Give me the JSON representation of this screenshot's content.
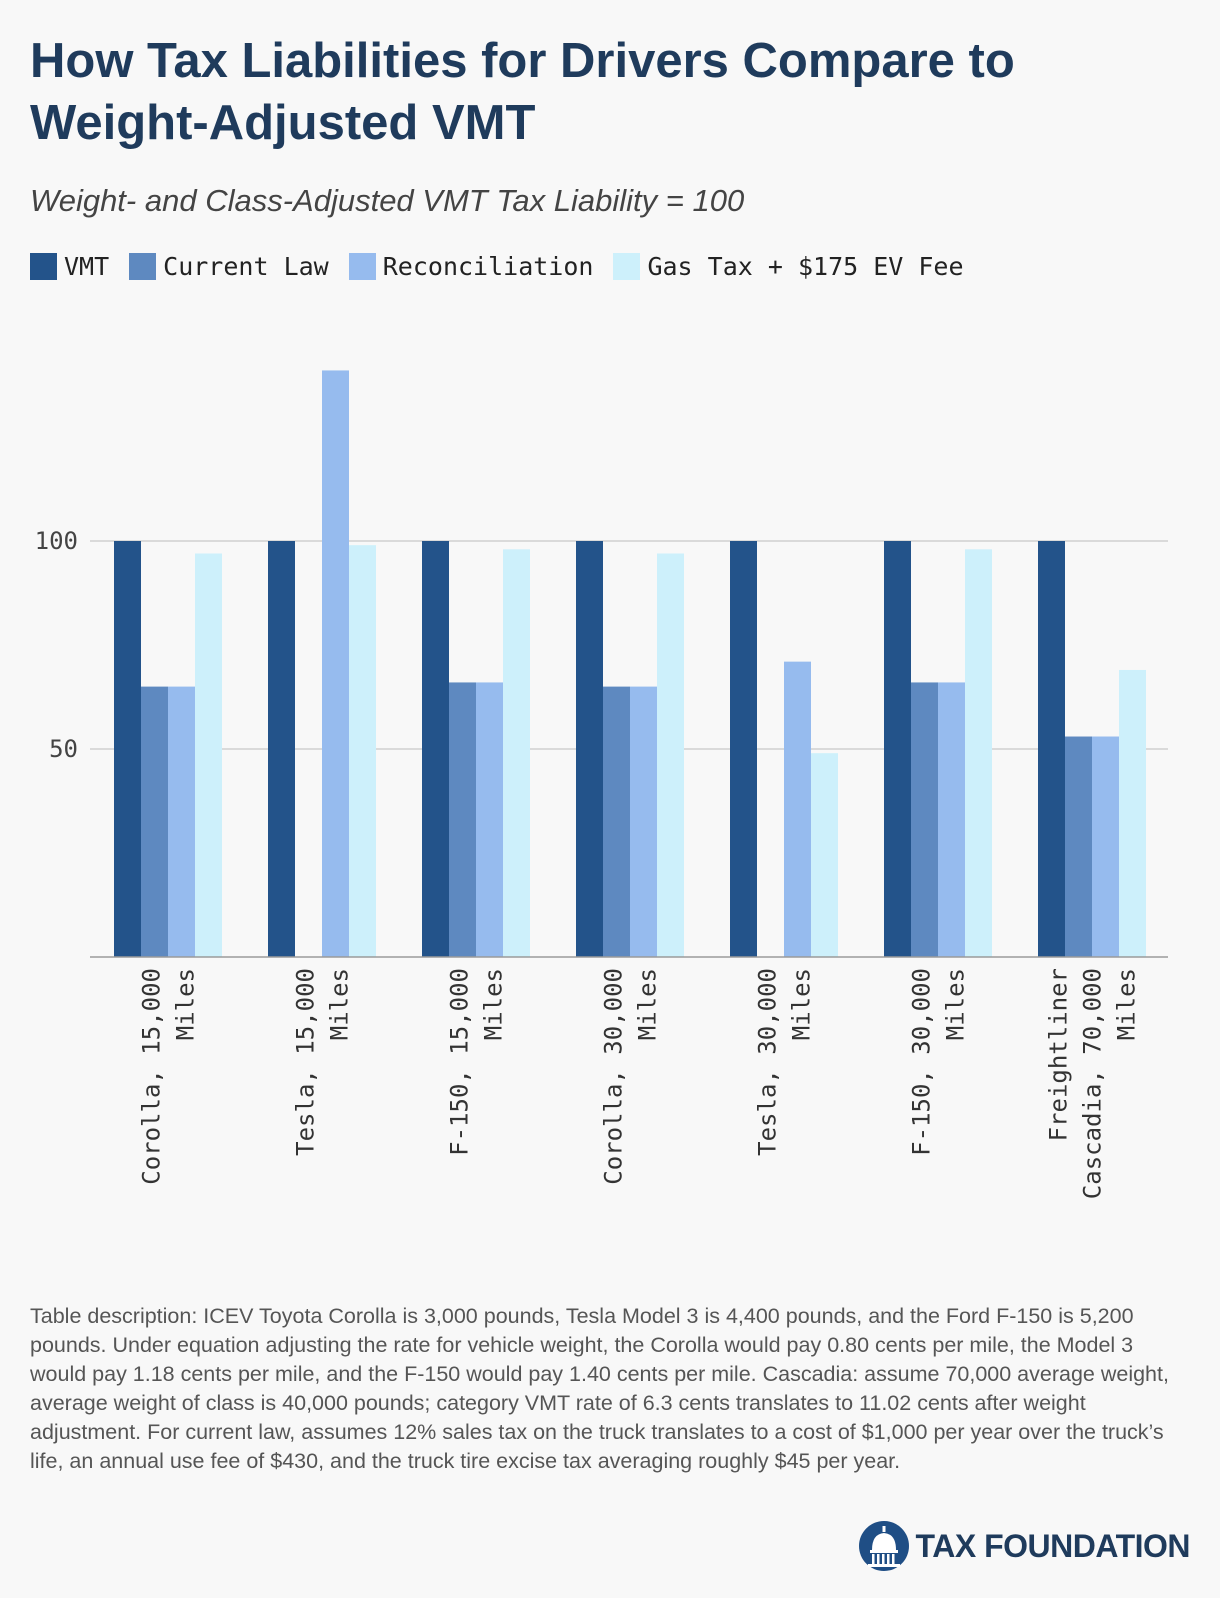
{
  "title": "How Tax Liabilities for Drivers Compare to Weight-Adjusted VMT",
  "subtitle": "Weight- and Class-Adjusted VMT Tax Liability = 100",
  "legend": [
    {
      "label": "VMT",
      "color": "#23538a"
    },
    {
      "label": "Current Law",
      "color": "#5e89c0"
    },
    {
      "label": "Reconciliation",
      "color": "#96bbee"
    },
    {
      "label": "Gas Tax + $175 EV Fee",
      "color": "#cdf0fb"
    }
  ],
  "chart_data": {
    "type": "bar",
    "categories": [
      [
        "Corolla, 15,000",
        "Miles"
      ],
      [
        "Tesla, 15,000",
        "Miles"
      ],
      [
        "F-150, 15,000",
        "Miles"
      ],
      [
        "Corolla, 30,000",
        "Miles"
      ],
      [
        "Tesla, 30,000",
        "Miles"
      ],
      [
        "F-150, 30,000",
        "Miles"
      ],
      [
        "Freightliner",
        "Cascadia, 70,000",
        "Miles"
      ]
    ],
    "series": [
      {
        "name": "VMT",
        "values": [
          100,
          100,
          100,
          100,
          100,
          100,
          100
        ]
      },
      {
        "name": "Current Law",
        "values": [
          65,
          0,
          66,
          65,
          0,
          66,
          53
        ]
      },
      {
        "name": "Reconciliation",
        "values": [
          65,
          141,
          66,
          65,
          71,
          66,
          53
        ]
      },
      {
        "name": "Gas Tax + $175 EV Fee",
        "values": [
          97,
          99,
          98,
          97,
          49,
          98,
          69
        ]
      }
    ],
    "yticks": [
      50,
      100
    ],
    "ylim": [
      0,
      150
    ],
    "grid": true,
    "legend_position": "top-left"
  },
  "note": "Table description: ICEV Toyota Corolla is 3,000 pounds, Tesla Model 3 is 4,400 pounds, and the Ford F-150 is 5,200 pounds. Under equation adjusting the rate for vehicle weight, the Corolla would pay 0.80 cents per mile, the Model 3 would pay 1.18 cents per mile, and the F-150 would pay 1.40 cents per mile. Cascadia: assume 70,000 average weight, average weight of class is 40,000 pounds; category VMT rate of 6.3 cents translates to 11.02 cents after weight adjustment. For current law, assumes 12% sales tax on the truck translates to a cost of $1,000 per year over the truck’s life, an annual use fee of $430, and the truck tire excise tax averaging roughly $45 per year.",
  "logo": {
    "text": "TAX FOUNDATION",
    "icon": "capitol-dome-icon"
  }
}
